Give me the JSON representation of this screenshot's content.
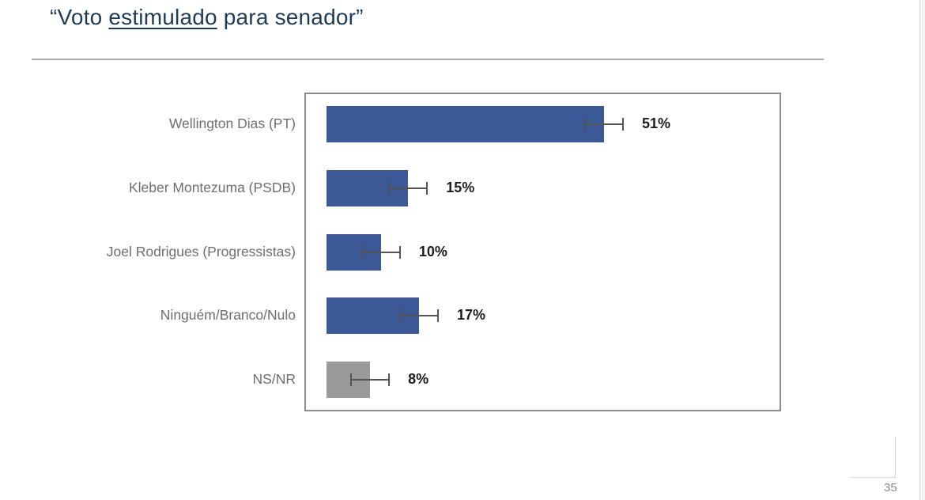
{
  "slide": {
    "title": {
      "before": "“Voto ",
      "underlined": "estimulado",
      "after": " para senador”"
    },
    "page_number": "35"
  },
  "chart_data": {
    "type": "bar",
    "orientation": "horizontal",
    "title": "Voto estimulado para senador",
    "xlabel": "",
    "ylabel": "",
    "xlim": [
      0,
      83
    ],
    "grid": false,
    "legend": null,
    "categories": [
      "Wellington Dias (PT)",
      "Kleber Montezuma (PSDB)",
      "Joel Rodrigues (Progressistas)",
      "Ninguém/Branco/Nulo",
      "NS/NR"
    ],
    "values": [
      51,
      15,
      10,
      17,
      8
    ],
    "value_labels": [
      "51%",
      "15%",
      "10%",
      "17%",
      "8%"
    ],
    "error_margin_pct": 3.5,
    "bar_colors": [
      "#3C5896",
      "#3C5896",
      "#3C5896",
      "#3C5896",
      "#9A9A9A"
    ],
    "error_bar_color": "#555555"
  },
  "colors": {
    "title": "#1F3A57",
    "divider": "#A9A9A9",
    "plot_border": "#8C8C8C",
    "category_label": "#6E6E6E",
    "value_label": "#1C1C1C"
  }
}
